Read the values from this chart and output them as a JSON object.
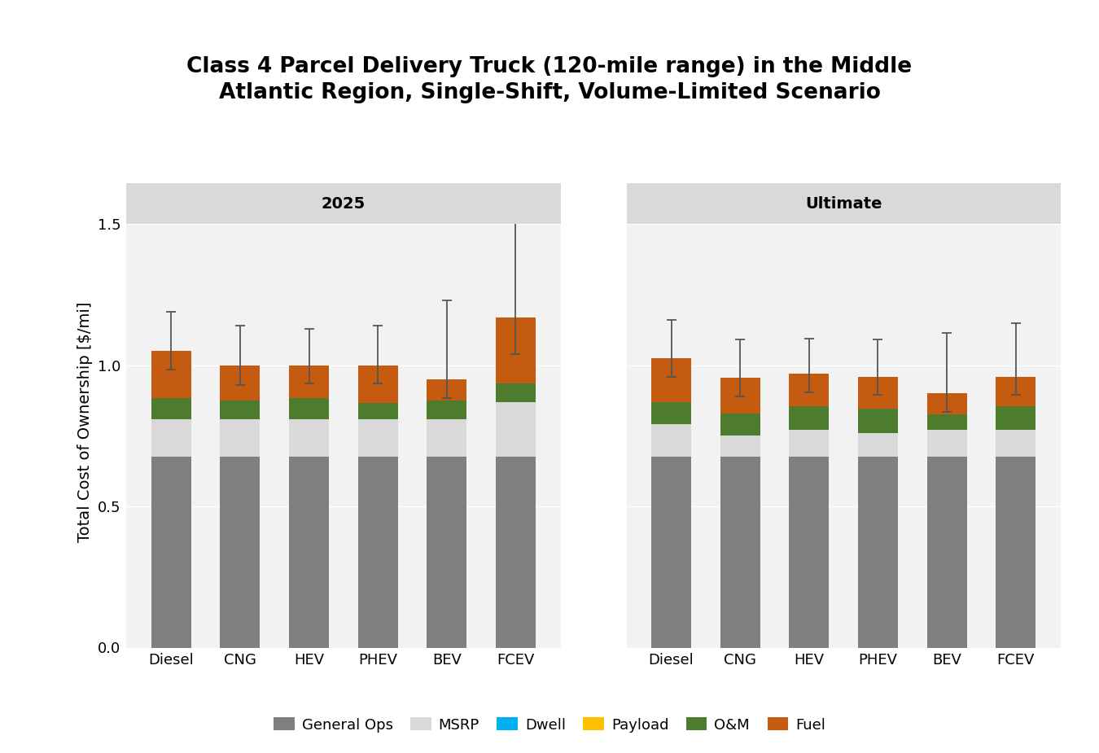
{
  "title": "Class 4 Parcel Delivery Truck (120-mile range) in the Middle\nAtlantic Region, Single-Shift, Volume-Limited Scenario",
  "ylabel": "Total Cost of Ownership [$/mi]",
  "ylim": [
    0.0,
    1.6
  ],
  "yticks": [
    0.0,
    0.5,
    1.0,
    1.5
  ],
  "ytick_labels": [
    "0.0",
    "0.5",
    "1.0",
    "1.5"
  ],
  "categories": [
    "Diesel",
    "CNG",
    "HEV",
    "PHEV",
    "BEV",
    "FCEV"
  ],
  "panel_labels": [
    "2025",
    "Ultimate"
  ],
  "colors": {
    "general_ops": "#7f7f7f",
    "msrp": "#d9d9d9",
    "dwell": "#00b0f0",
    "payload": "#ffc000",
    "om": "#4e7c2f",
    "fuel": "#c55a11"
  },
  "legend_labels": [
    "General Ops",
    "MSRP",
    "Dwell",
    "Payload",
    "O&M",
    "Fuel"
  ],
  "data_2025": {
    "general_ops": [
      0.675,
      0.675,
      0.675,
      0.675,
      0.675,
      0.675
    ],
    "msrp": [
      0.135,
      0.135,
      0.135,
      0.135,
      0.135,
      0.195
    ],
    "dwell": [
      0.0,
      0.0,
      0.0,
      0.0,
      0.0,
      0.0
    ],
    "payload": [
      0.0,
      0.0,
      0.0,
      0.0,
      0.0,
      0.0
    ],
    "om": [
      0.075,
      0.065,
      0.075,
      0.055,
      0.065,
      0.065
    ],
    "fuel": [
      0.165,
      0.125,
      0.115,
      0.135,
      0.075,
      0.235
    ],
    "total": [
      1.05,
      1.0,
      1.0,
      1.0,
      0.95,
      1.17
    ],
    "error_low": [
      0.065,
      0.07,
      0.065,
      0.065,
      0.065,
      0.13
    ],
    "error_high": [
      0.14,
      0.14,
      0.13,
      0.14,
      0.28,
      0.44
    ]
  },
  "data_ultimate": {
    "general_ops": [
      0.675,
      0.675,
      0.675,
      0.675,
      0.675,
      0.675
    ],
    "msrp": [
      0.115,
      0.075,
      0.095,
      0.085,
      0.095,
      0.095
    ],
    "dwell": [
      0.0,
      0.0,
      0.0,
      0.0,
      0.0,
      0.0
    ],
    "payload": [
      0.0,
      0.0,
      0.0,
      0.0,
      0.0,
      0.0
    ],
    "om": [
      0.08,
      0.08,
      0.085,
      0.085,
      0.055,
      0.085
    ],
    "fuel": [
      0.155,
      0.125,
      0.115,
      0.115,
      0.075,
      0.105
    ],
    "total": [
      1.025,
      0.955,
      0.97,
      0.96,
      0.9,
      0.96
    ],
    "error_low": [
      0.065,
      0.065,
      0.065,
      0.065,
      0.065,
      0.065
    ],
    "error_high": [
      0.135,
      0.135,
      0.125,
      0.13,
      0.215,
      0.19
    ]
  },
  "panel_bg": "#d9d9d9",
  "plot_bg": "#f2f2f2",
  "bar_width": 0.58,
  "title_fontsize": 19,
  "label_fontsize": 14,
  "tick_fontsize": 13,
  "legend_fontsize": 13,
  "panel_label_fontsize": 14
}
